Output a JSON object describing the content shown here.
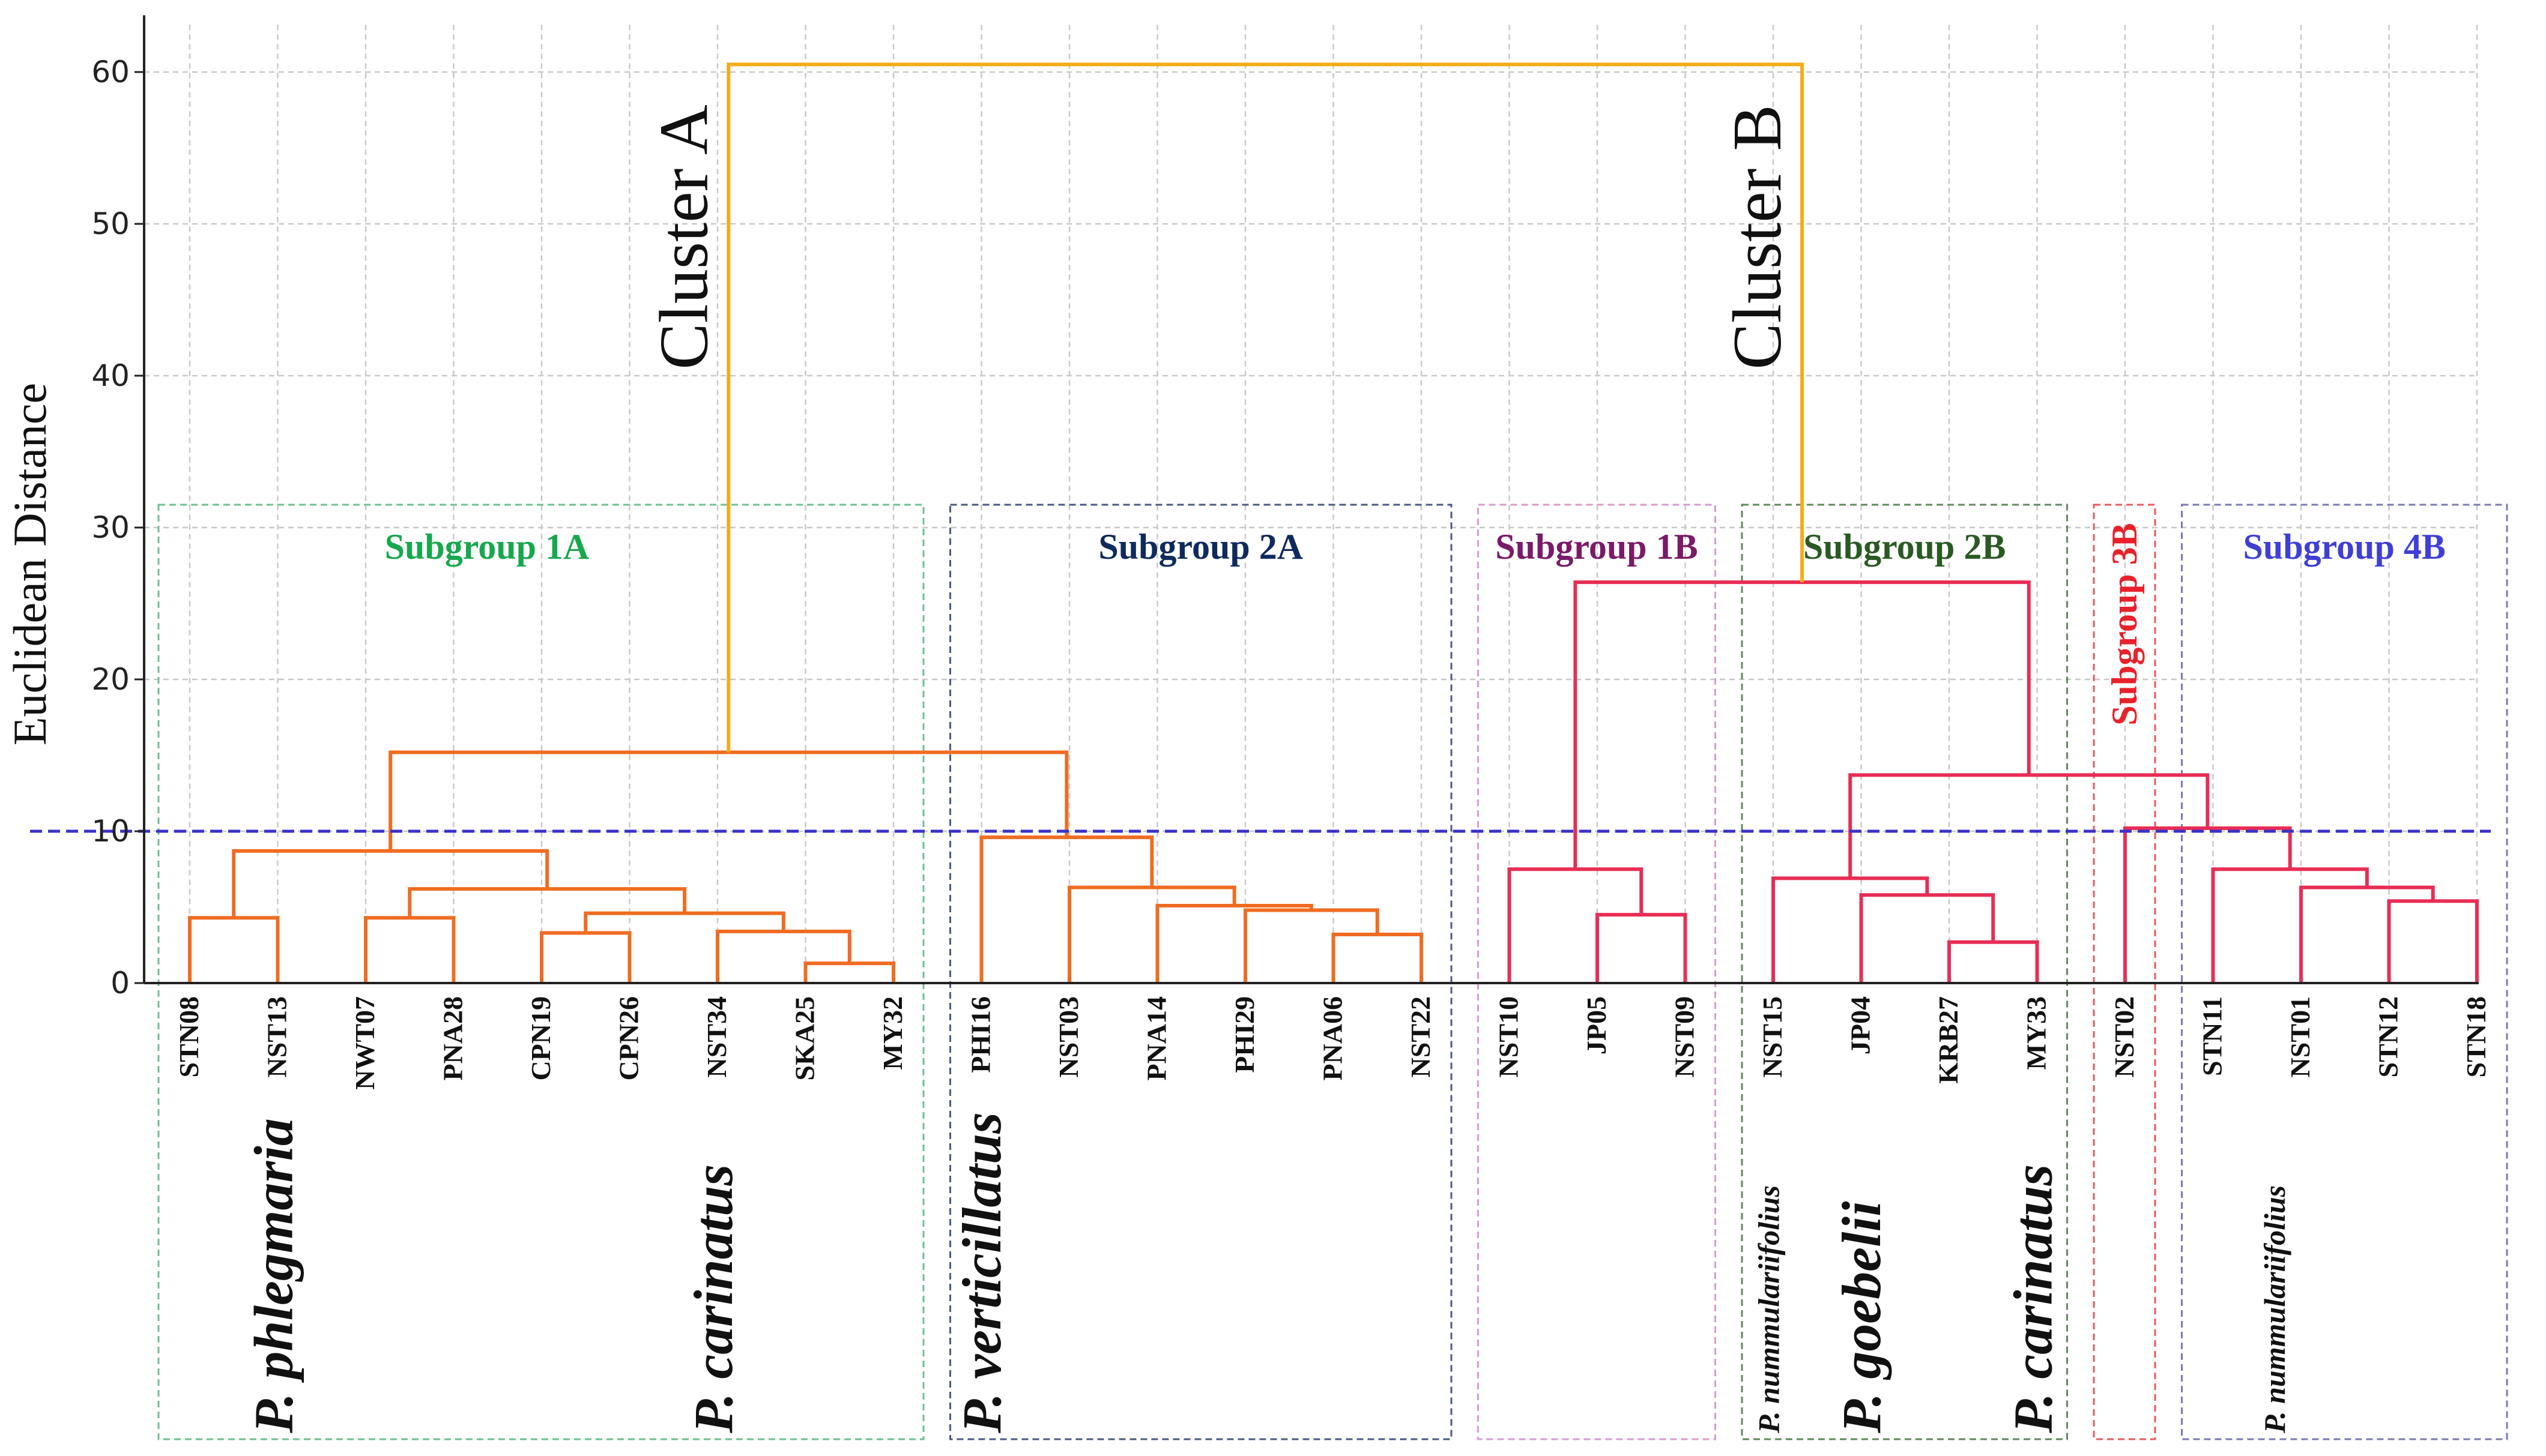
{
  "chart_data": {
    "type": "dendrogram",
    "title": "",
    "ylabel": "Euclidean Distance",
    "xlabel": "",
    "ylim": [
      0,
      63.5
    ],
    "yticks": [
      0,
      10,
      20,
      30,
      40,
      50,
      60
    ],
    "cut_height": 10,
    "leaves": [
      "STN08",
      "NST13",
      "NWT07",
      "PNA28",
      "CPN19",
      "CPN26",
      "NST34",
      "SKA25",
      "MY32",
      "PHI16",
      "NST03",
      "PNA14",
      "PHI29",
      "PNA06",
      "NST22",
      "NST10",
      "JP05",
      "NST09",
      "NST15",
      "JP04",
      "KRB27",
      "MY33",
      "NST02",
      "STN11",
      "NST01",
      "STN12",
      "STN18"
    ],
    "merges": [
      {
        "left": "STN08",
        "right": "NST13",
        "height": 4.3,
        "id": "m1"
      },
      {
        "left": "NWT07",
        "right": "PNA28",
        "height": 4.3,
        "id": "m2"
      },
      {
        "left": "SKA25",
        "right": "MY32",
        "height": 1.3,
        "id": "m3"
      },
      {
        "left": "NST34",
        "right": "m3",
        "height": 3.4,
        "id": "m4"
      },
      {
        "left": "CPN19",
        "right": "CPN26",
        "height": 3.3,
        "id": "m5"
      },
      {
        "left": "m5",
        "right": "m4",
        "height": 4.6,
        "id": "m6"
      },
      {
        "left": "m2",
        "right": "m6",
        "height": 6.2,
        "id": "m7"
      },
      {
        "left": "m1",
        "right": "m7",
        "height": 8.7,
        "id": "m8"
      },
      {
        "left": "PNA06",
        "right": "NST22",
        "height": 3.2,
        "id": "m9"
      },
      {
        "left": "PHI29",
        "right": "m9",
        "height": 4.8,
        "id": "m10"
      },
      {
        "left": "PNA14",
        "right": "m10",
        "height": 5.1,
        "id": "m11"
      },
      {
        "left": "NST03",
        "right": "m11",
        "height": 6.3,
        "id": "m12"
      },
      {
        "left": "PHI16",
        "right": "m12",
        "height": 9.6,
        "id": "m13"
      },
      {
        "left": "m8",
        "right": "m13",
        "height": 15.2,
        "id": "m14"
      },
      {
        "left": "JP05",
        "right": "NST09",
        "height": 4.5,
        "id": "m15"
      },
      {
        "left": "NST10",
        "right": "m15",
        "height": 7.5,
        "id": "m16"
      },
      {
        "left": "KRB27",
        "right": "MY33",
        "height": 2.7,
        "id": "m17"
      },
      {
        "left": "JP04",
        "right": "m17",
        "height": 5.8,
        "id": "m18"
      },
      {
        "left": "NST15",
        "right": "m18",
        "height": 6.9,
        "id": "m19"
      },
      {
        "left": "STN12",
        "right": "STN18",
        "height": 5.4,
        "id": "m20"
      },
      {
        "left": "NST01",
        "right": "m20",
        "height": 6.3,
        "id": "m21"
      },
      {
        "left": "STN11",
        "right": "m21",
        "height": 7.5,
        "id": "m22"
      },
      {
        "left": "NST02",
        "right": "m22",
        "height": 10.2,
        "id": "m23"
      },
      {
        "left": "m19",
        "right": "m23",
        "height": 13.7,
        "id": "m24"
      },
      {
        "left": "m16",
        "right": "m24",
        "height": 26.4,
        "id": "m25"
      },
      {
        "left": "m14",
        "right": "m25",
        "height": 60.5,
        "id": "m26"
      }
    ],
    "cluster_labels": [
      {
        "text": "Cluster A",
        "node": "m14"
      },
      {
        "text": "Cluster B",
        "node": "m25"
      }
    ],
    "subgroups": [
      {
        "label": "Subgroup 1A",
        "first": 0,
        "last": 8,
        "top": 31.5,
        "color": "#17a84e",
        "box_color": "#6fbf92",
        "vertical": false
      },
      {
        "label": "Subgroup 2A",
        "first": 9,
        "last": 14,
        "top": 31.5,
        "color": "#0f2a5c",
        "box_color": "#4a5a80",
        "vertical": false
      },
      {
        "label": "Subgroup 1B",
        "first": 15,
        "last": 17,
        "top": 31.5,
        "color": "#7a1a68",
        "box_color": "#d69bd0",
        "vertical": false
      },
      {
        "label": "Subgroup 2B",
        "first": 18,
        "last": 21,
        "top": 31.5,
        "color": "#2a5a24",
        "box_color": "#5f8a5a",
        "vertical": false
      },
      {
        "label": "Subgroup 3B",
        "first": 22,
        "last": 22,
        "top": 31.5,
        "color": "#e8212a",
        "box_color": "#e65a5f",
        "vertical": true
      },
      {
        "label": "Subgroup 4B",
        "first": 23,
        "last": 26,
        "top": 31.5,
        "color": "#3f3fd6",
        "box_color": "#7a7ab0",
        "vertical": false
      }
    ],
    "species_labels": [
      {
        "text": "P. phlegmaria",
        "leaf_pos": 0.95,
        "size": 92
      },
      {
        "text": "P. carinatus",
        "leaf_pos": 5.95,
        "size": 92
      },
      {
        "text": "P. verticillatus",
        "leaf_pos": 9.0,
        "size": 92
      },
      {
        "text": "P. nummulariifolius",
        "leaf_pos": 17.95,
        "size": 50
      },
      {
        "text": "P. goebelii",
        "leaf_pos": 19.0,
        "size": 92
      },
      {
        "text": "P. carinatus",
        "leaf_pos": 20.95,
        "size": 92
      },
      {
        "text": "P. nummulariifolius",
        "leaf_pos": 23.7,
        "size": 50
      }
    ],
    "colors": {
      "cluster_a_links": "#ef6c22",
      "cluster_b_links": "#e82d55",
      "root_link": "#f4ac17",
      "cut_line": "#3a32c8"
    }
  }
}
